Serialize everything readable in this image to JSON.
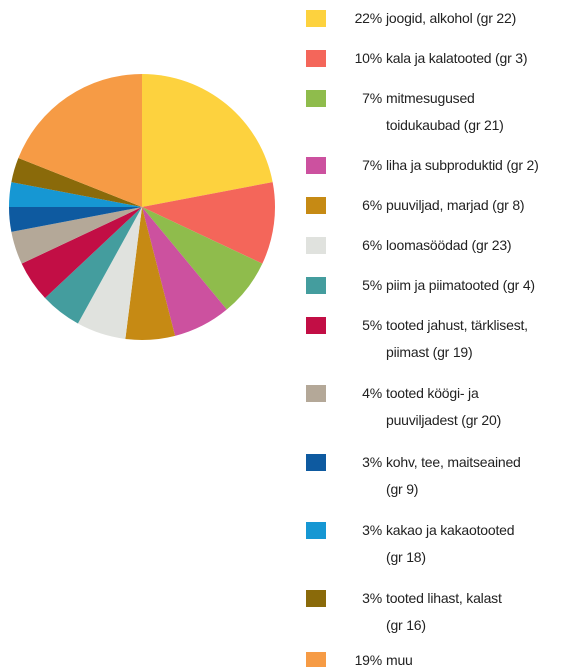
{
  "chart_data": {
    "type": "pie",
    "categories": [
      "joogid, alkohol (gr 22)",
      "kala ja kalatooted (gr 3)",
      "mitmesugused\ntoidukaubad (gr 21)",
      "liha ja subproduktid (gr 2)",
      "puuviljad, marjad (gr 8)",
      "loomasöödad (gr 23)",
      "piim ja piimatooted (gr 4)",
      "tooted jahust, tärklisest,\npiimast (gr 19)",
      "tooted köögi- ja\npuuviljadest (gr 20)",
      "kohv, tee, maitseained\n(gr 9)",
      "kakao ja kakaotooted\n(gr 18)",
      "tooted lihast, kalast\n(gr 16)",
      "muu"
    ],
    "values": [
      22,
      10,
      7,
      7,
      6,
      6,
      5,
      5,
      4,
      3,
      3,
      3,
      19
    ],
    "value_labels": [
      "22%",
      "10%",
      "7%",
      "7%",
      "6%",
      "6%",
      "5%",
      "5%",
      "4%",
      "3%",
      "3%",
      "3%",
      "19%"
    ],
    "colors": [
      "#fdd23e",
      "#f4665a",
      "#8fbc4c",
      "#cc519f",
      "#c68a14",
      "#e0e2de",
      "#449d9e",
      "#c20e45",
      "#b4a898",
      "#0e5aa0",
      "#1697d3",
      "#8a6a0a",
      "#f69b45"
    ],
    "legend": "right"
  }
}
